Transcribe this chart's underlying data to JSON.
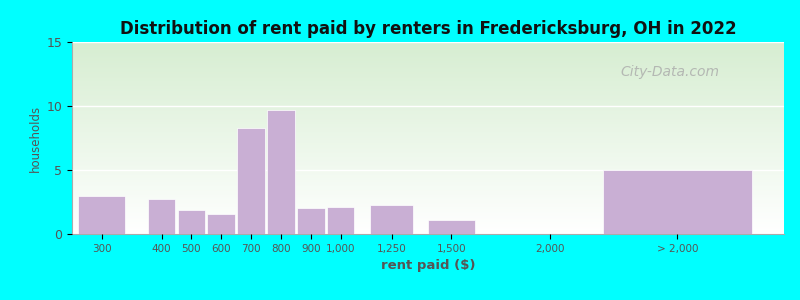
{
  "title": "Distribution of rent paid by renters in Fredericksburg, OH in 2022",
  "xlabel": "rent paid ($)",
  "ylabel": "households",
  "bar_color": "#c9afd4",
  "background_color": "#00ffff",
  "yticks": [
    0,
    5,
    10,
    15
  ],
  "ylim": [
    0,
    15
  ],
  "watermark": "City-Data.com",
  "bars": [
    {
      "label": "300",
      "value": 3,
      "x": 0
    },
    {
      "label": "400",
      "value": 2.7,
      "x": 1.4
    },
    {
      "label": "500",
      "value": 1.9,
      "x": 2.1
    },
    {
      "label": "600",
      "value": 1.6,
      "x": 2.8
    },
    {
      "label": "700",
      "value": 8.3,
      "x": 3.5
    },
    {
      "label": "800",
      "value": 9.7,
      "x": 4.2
    },
    {
      "label": "900",
      "value": 2.0,
      "x": 4.9
    },
    {
      "label": "1,000",
      "value": 2.1,
      "x": 5.6
    },
    {
      "label": "1,250",
      "value": 2.3,
      "x": 6.8
    },
    {
      "label": "1,500",
      "value": 1.1,
      "x": 8.2
    },
    {
      "label": "2,000",
      "value": 0,
      "x": 10.5
    },
    {
      "label": "> 2,000",
      "value": 5,
      "x": 13.5
    }
  ]
}
